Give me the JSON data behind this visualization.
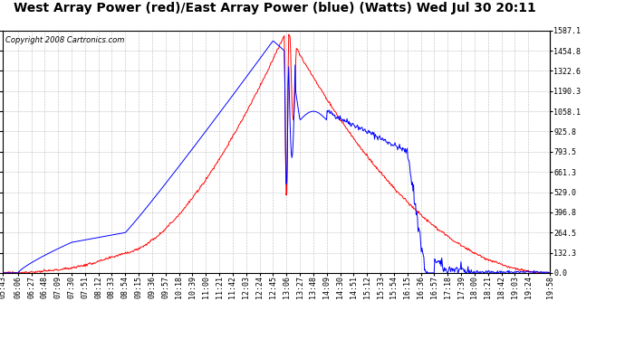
{
  "title": "West Array Power (red)/East Array Power (blue) (Watts) Wed Jul 30 20:11",
  "copyright": "Copyright 2008 Cartronics.com",
  "background_color": "#ffffff",
  "plot_bg_color": "#ffffff",
  "grid_color": "#aaaaaa",
  "y_ticks": [
    0.0,
    132.3,
    264.5,
    396.8,
    529.0,
    661.3,
    793.5,
    925.8,
    1058.1,
    1190.3,
    1322.6,
    1454.8,
    1587.1
  ],
  "x_labels": [
    "05:43",
    "06:06",
    "06:27",
    "06:48",
    "07:09",
    "07:30",
    "07:51",
    "08:12",
    "08:33",
    "08:54",
    "09:15",
    "09:36",
    "09:57",
    "10:18",
    "10:39",
    "11:00",
    "11:21",
    "11:42",
    "12:03",
    "12:24",
    "12:45",
    "13:06",
    "13:27",
    "13:48",
    "14:09",
    "14:30",
    "14:51",
    "15:12",
    "15:33",
    "15:54",
    "16:15",
    "16:36",
    "16:57",
    "17:18",
    "17:39",
    "18:00",
    "18:21",
    "18:42",
    "19:03",
    "19:24",
    "19:58"
  ],
  "red_color": "#ff0000",
  "blue_color": "#0000ff",
  "title_fontsize": 10,
  "copyright_fontsize": 6,
  "tick_fontsize": 6,
  "y_max": 1587.1,
  "y_min": 0.0
}
